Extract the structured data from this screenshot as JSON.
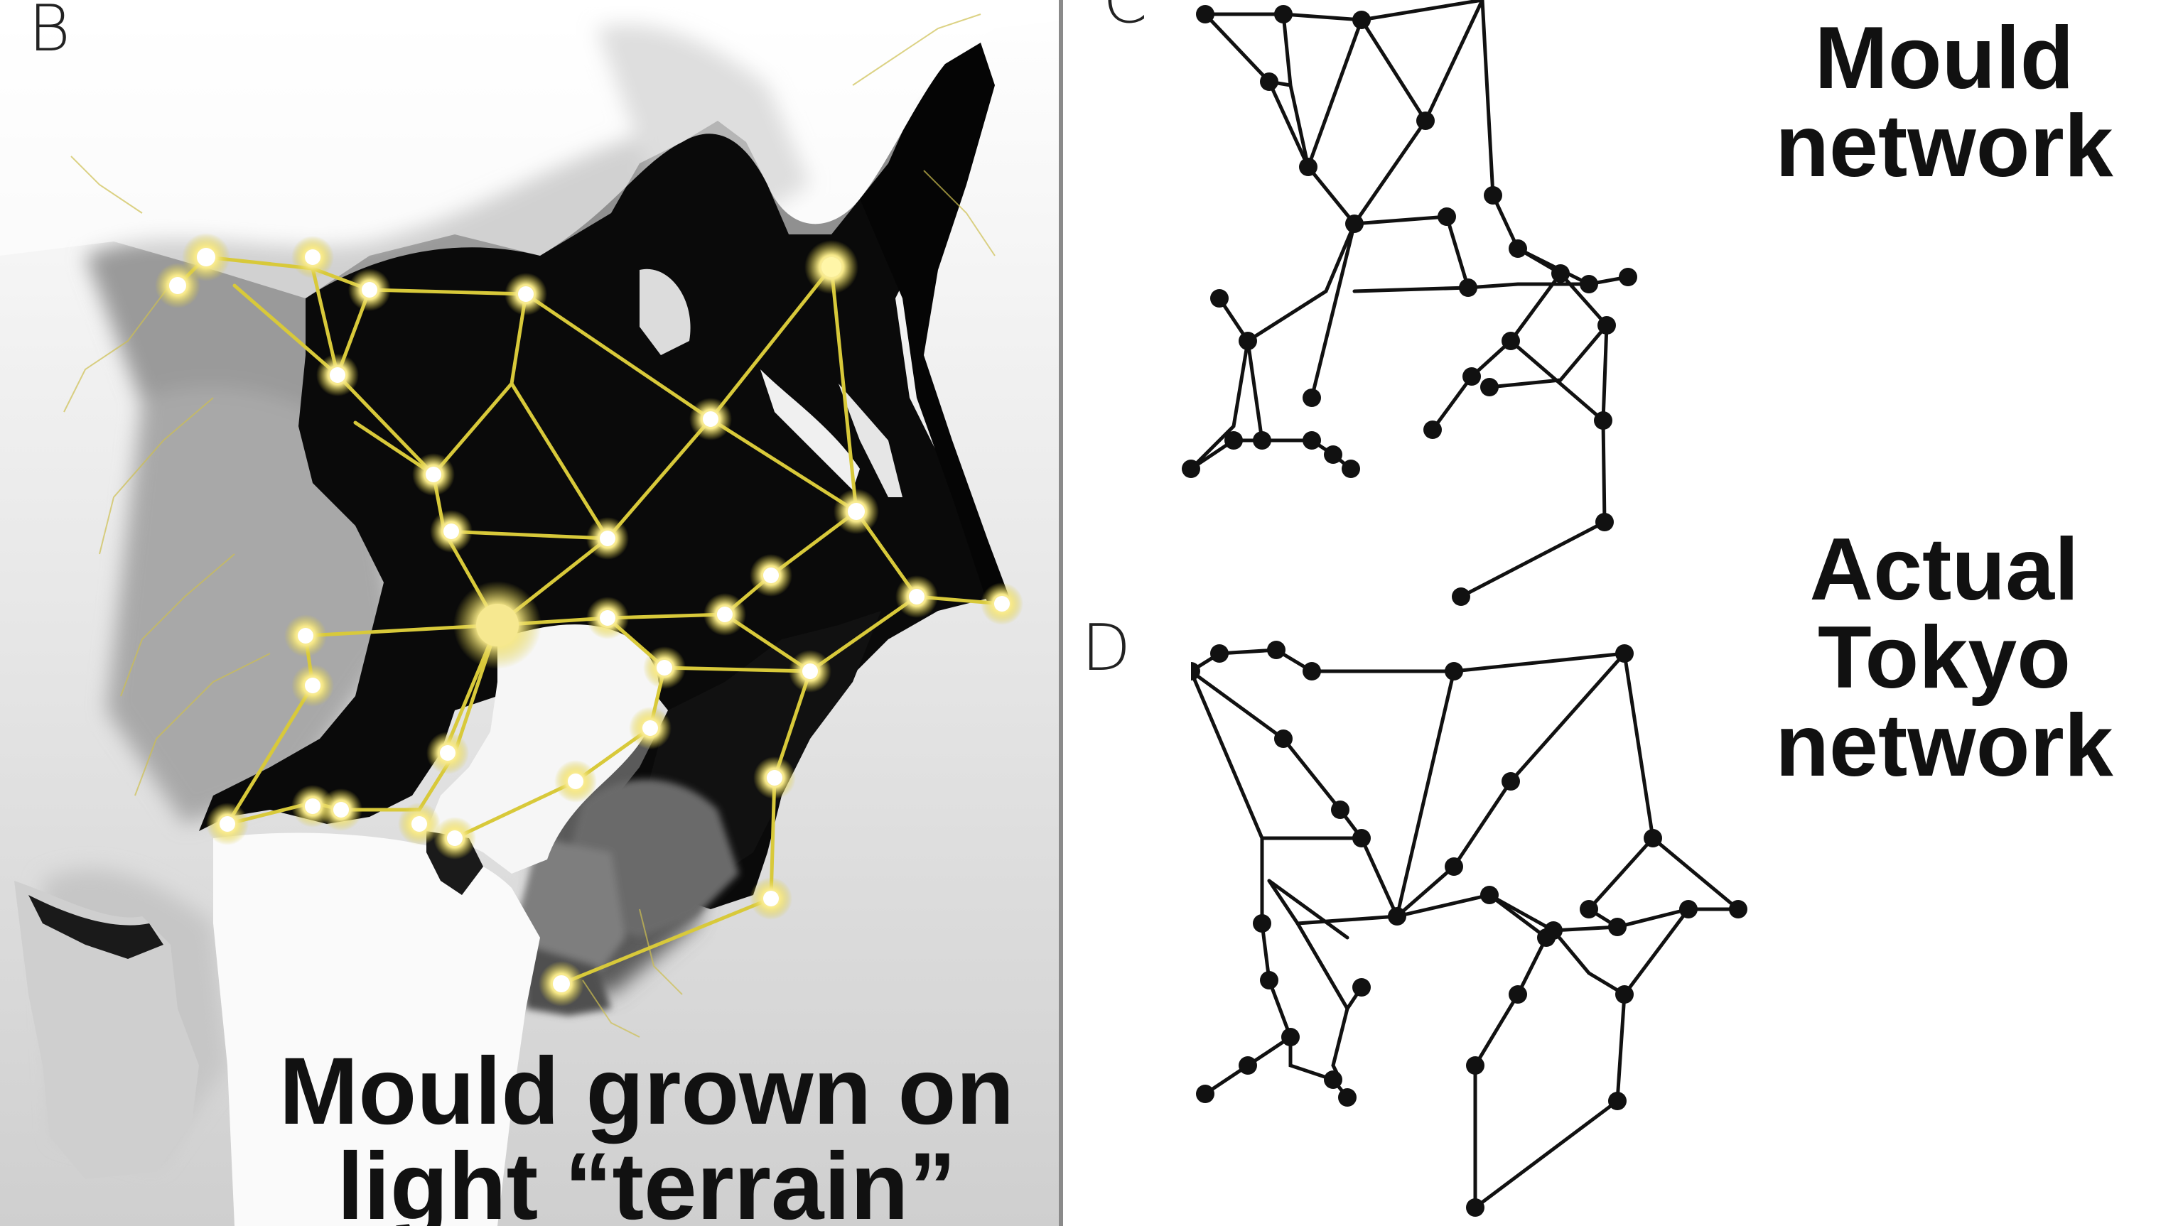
{
  "panels": {
    "b": {
      "letter": "B",
      "caption": "Mould grown on\nlight “terrain”"
    },
    "c": {
      "letter": "C",
      "caption": "Mould\nnetwork"
    },
    "d": {
      "letter": "D",
      "caption": "Actual\nTokyo\nnetwork"
    }
  },
  "colors": {
    "land": "#0a0a0a",
    "terrain_light": "#f2f2f2",
    "mould": "#d8c93a",
    "mould_glow": "#fff6a8",
    "node": "#111111",
    "divider": "#8a8a8a"
  },
  "icons": {
    "node": "filled-circle",
    "food_source": "glowing-dot"
  }
}
